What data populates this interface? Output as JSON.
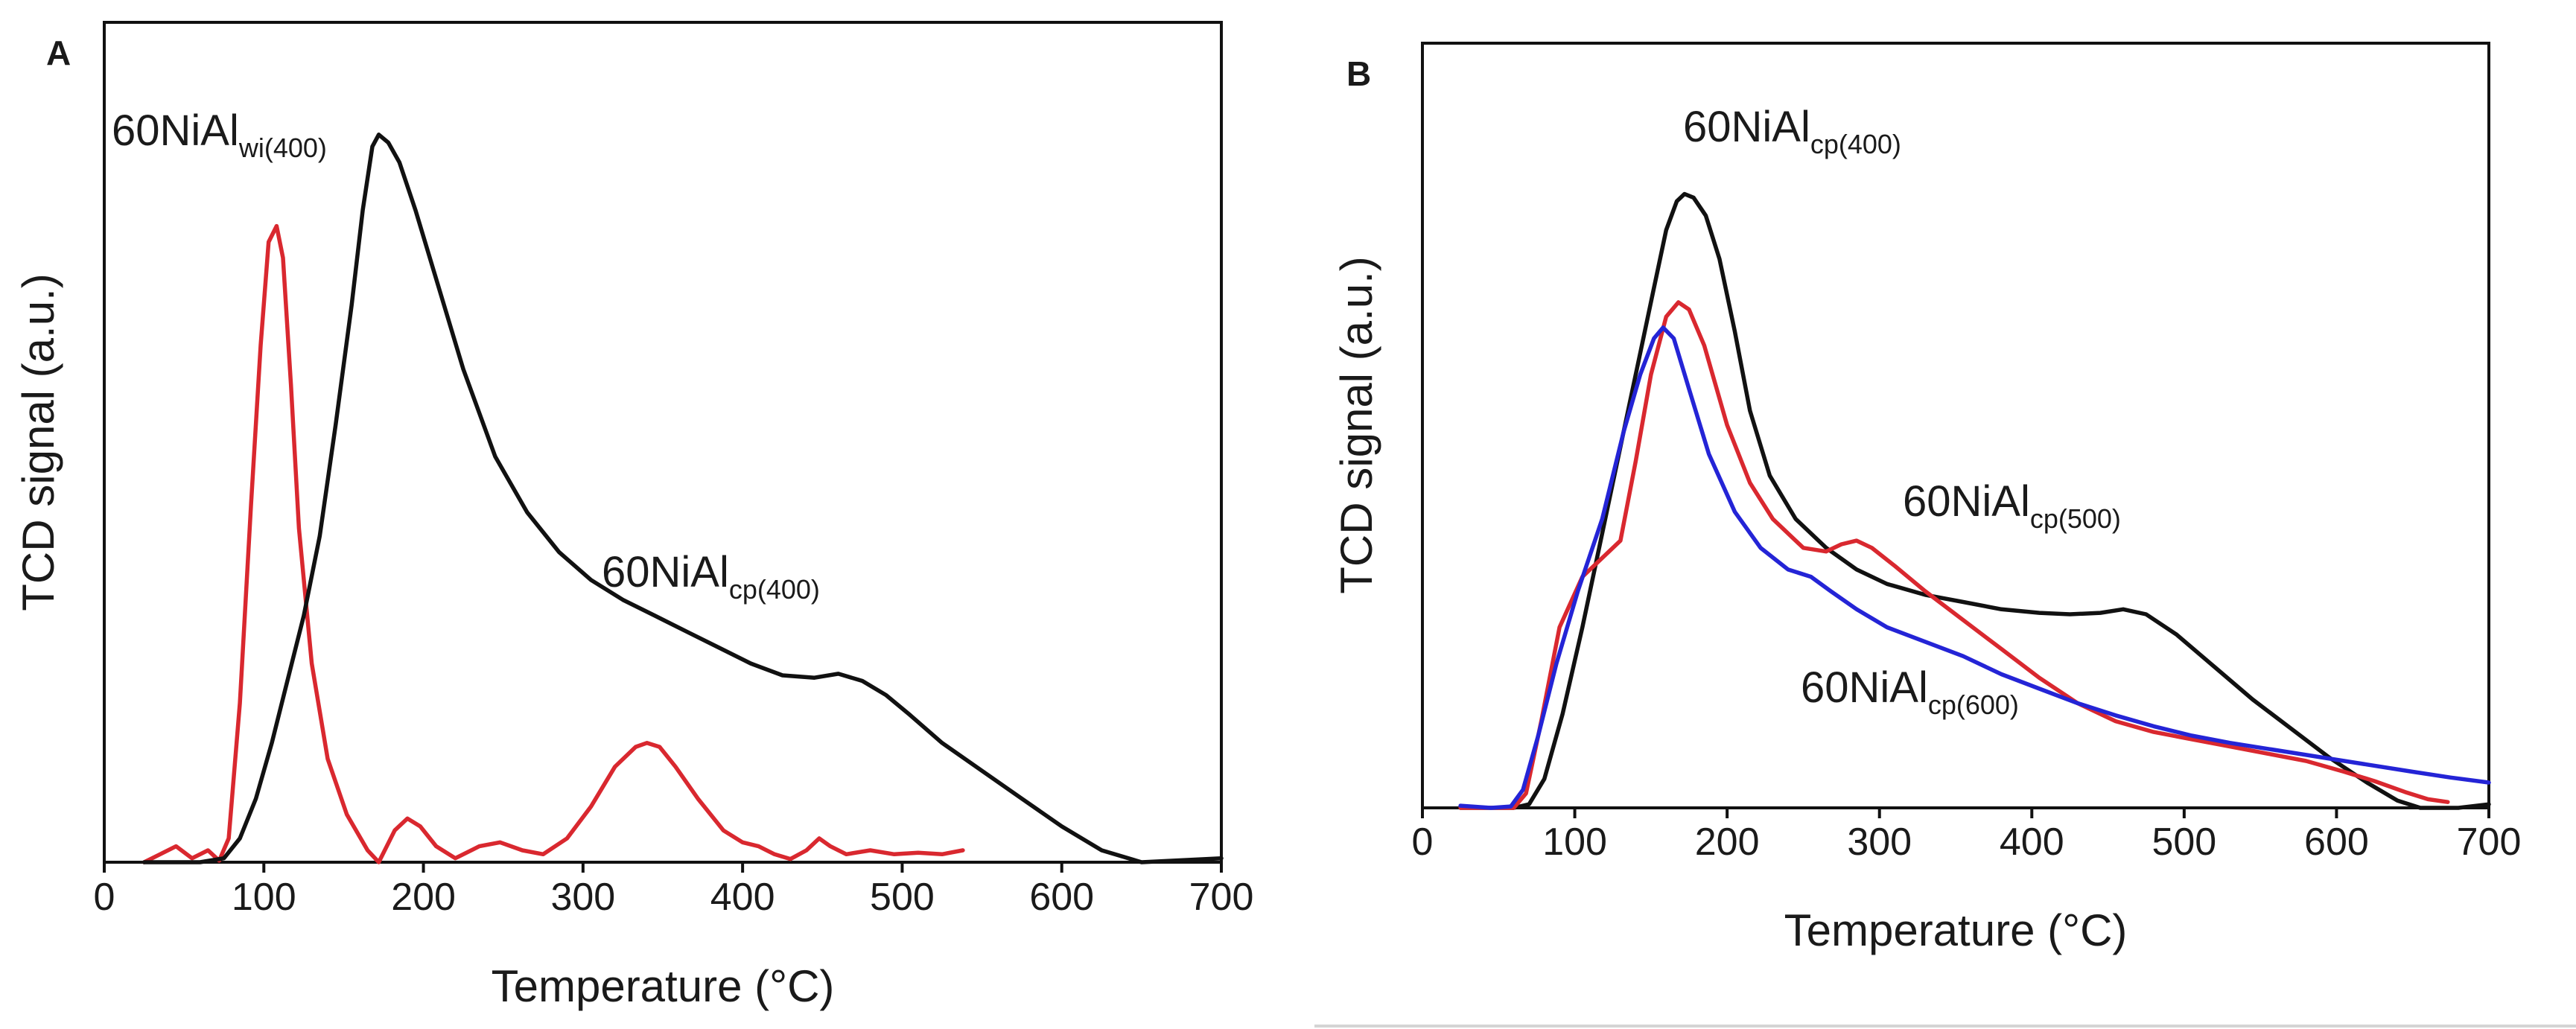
{
  "chart_data": [
    {
      "panel": "A",
      "type": "line",
      "title": "",
      "xlabel": "Temperature (°C)",
      "ylabel": "TCD signal (a.u.)",
      "xlim": [
        0,
        700
      ],
      "ylim": [
        0,
        1
      ],
      "xticks": [
        "0",
        "100",
        "200",
        "300",
        "400",
        "500",
        "600",
        "700"
      ],
      "grid": false,
      "series": [
        {
          "name": "60NiAlcp(400)",
          "label_main": "60NiAl",
          "label_sub": "cp(400)",
          "color": "#111111",
          "points": [
            [
              25,
              0.0
            ],
            [
              60,
              0.0
            ],
            [
              75,
              0.005
            ],
            [
              85,
              0.03
            ],
            [
              95,
              0.08
            ],
            [
              105,
              0.15
            ],
            [
              115,
              0.23
            ],
            [
              125,
              0.31
            ],
            [
              135,
              0.41
            ],
            [
              145,
              0.55
            ],
            [
              155,
              0.7
            ],
            [
              162,
              0.82
            ],
            [
              168,
              0.9
            ],
            [
              172,
              0.915
            ],
            [
              178,
              0.905
            ],
            [
              185,
              0.88
            ],
            [
              195,
              0.82
            ],
            [
              210,
              0.72
            ],
            [
              225,
              0.62
            ],
            [
              245,
              0.51
            ],
            [
              265,
              0.44
            ],
            [
              285,
              0.39
            ],
            [
              305,
              0.355
            ],
            [
              325,
              0.33
            ],
            [
              345,
              0.31
            ],
            [
              365,
              0.29
            ],
            [
              385,
              0.27
            ],
            [
              405,
              0.25
            ],
            [
              425,
              0.235
            ],
            [
              445,
              0.232
            ],
            [
              460,
              0.237
            ],
            [
              475,
              0.228
            ],
            [
              490,
              0.21
            ],
            [
              505,
              0.185
            ],
            [
              525,
              0.15
            ],
            [
              550,
              0.115
            ],
            [
              575,
              0.08
            ],
            [
              600,
              0.045
            ],
            [
              625,
              0.015
            ],
            [
              650,
              0.0
            ],
            [
              700,
              0.005
            ]
          ]
        },
        {
          "name": "60NiAlwi(400)",
          "label_main": "60NiAl",
          "label_sub": "wi(400)",
          "color": "#d9282f",
          "points": [
            [
              25,
              0.0
            ],
            [
              35,
              0.01
            ],
            [
              45,
              0.02
            ],
            [
              55,
              0.005
            ],
            [
              65,
              0.015
            ],
            [
              72,
              0.002
            ],
            [
              78,
              0.03
            ],
            [
              85,
              0.2
            ],
            [
              92,
              0.45
            ],
            [
              98,
              0.65
            ],
            [
              103,
              0.78
            ],
            [
              108,
              0.8
            ],
            [
              112,
              0.76
            ],
            [
              117,
              0.6
            ],
            [
              122,
              0.42
            ],
            [
              130,
              0.25
            ],
            [
              140,
              0.13
            ],
            [
              152,
              0.06
            ],
            [
              165,
              0.015
            ],
            [
              172,
              0.0
            ],
            [
              182,
              0.04
            ],
            [
              190,
              0.055
            ],
            [
              198,
              0.045
            ],
            [
              208,
              0.02
            ],
            [
              220,
              0.005
            ],
            [
              235,
              0.02
            ],
            [
              248,
              0.025
            ],
            [
              262,
              0.015
            ],
            [
              275,
              0.01
            ],
            [
              290,
              0.03
            ],
            [
              305,
              0.07
            ],
            [
              320,
              0.12
            ],
            [
              333,
              0.145
            ],
            [
              340,
              0.15
            ],
            [
              348,
              0.145
            ],
            [
              358,
              0.12
            ],
            [
              372,
              0.08
            ],
            [
              388,
              0.04
            ],
            [
              400,
              0.025
            ],
            [
              410,
              0.02
            ],
            [
              420,
              0.01
            ],
            [
              430,
              0.004
            ],
            [
              440,
              0.015
            ],
            [
              448,
              0.03
            ],
            [
              455,
              0.02
            ],
            [
              465,
              0.01
            ],
            [
              480,
              0.015
            ],
            [
              495,
              0.01
            ],
            [
              510,
              0.012
            ],
            [
              525,
              0.01
            ],
            [
              538,
              0.015
            ]
          ]
        }
      ]
    },
    {
      "panel": "B",
      "type": "line",
      "title": "",
      "xlabel": "Temperature (°C)",
      "ylabel": "TCD signal (a.u.)",
      "xlim": [
        0,
        700
      ],
      "ylim": [
        0,
        1
      ],
      "xticks": [
        "0",
        "100",
        "200",
        "300",
        "400",
        "500",
        "600",
        "700"
      ],
      "grid": false,
      "series": [
        {
          "name": "60NiAlcp(400)",
          "label_main": "60NiAl",
          "label_sub": "cp(400)",
          "color": "#111111",
          "points": [
            [
              25,
              0.0
            ],
            [
              60,
              0.0
            ],
            [
              70,
              0.005
            ],
            [
              80,
              0.04
            ],
            [
              92,
              0.13
            ],
            [
              105,
              0.25
            ],
            [
              118,
              0.38
            ],
            [
              130,
              0.5
            ],
            [
              142,
              0.62
            ],
            [
              152,
              0.72
            ],
            [
              160,
              0.8
            ],
            [
              167,
              0.84
            ],
            [
              172,
              0.85
            ],
            [
              178,
              0.845
            ],
            [
              186,
              0.82
            ],
            [
              195,
              0.76
            ],
            [
              205,
              0.66
            ],
            [
              215,
              0.55
            ],
            [
              228,
              0.46
            ],
            [
              245,
              0.4
            ],
            [
              265,
              0.36
            ],
            [
              285,
              0.33
            ],
            [
              305,
              0.31
            ],
            [
              330,
              0.295
            ],
            [
              355,
              0.285
            ],
            [
              380,
              0.275
            ],
            [
              405,
              0.27
            ],
            [
              425,
              0.268
            ],
            [
              445,
              0.27
            ],
            [
              460,
              0.275
            ],
            [
              475,
              0.268
            ],
            [
              495,
              0.24
            ],
            [
              520,
              0.195
            ],
            [
              545,
              0.15
            ],
            [
              570,
              0.11
            ],
            [
              595,
              0.07
            ],
            [
              620,
              0.035
            ],
            [
              640,
              0.01
            ],
            [
              655,
              0.0
            ],
            [
              680,
              0.0
            ],
            [
              700,
              0.005
            ]
          ]
        },
        {
          "name": "60NiAlcp(500)",
          "label_main": "60NiAl",
          "label_sub": "cp(500)",
          "color": "#d9282f",
          "points": [
            [
              25,
              0.0
            ],
            [
              60,
              0.0
            ],
            [
              68,
              0.02
            ],
            [
              78,
              0.12
            ],
            [
              90,
              0.25
            ],
            [
              105,
              0.32
            ],
            [
              120,
              0.35
            ],
            [
              130,
              0.37
            ],
            [
              140,
              0.48
            ],
            [
              150,
              0.6
            ],
            [
              160,
              0.68
            ],
            [
              168,
              0.7
            ],
            [
              175,
              0.69
            ],
            [
              185,
              0.64
            ],
            [
              200,
              0.53
            ],
            [
              215,
              0.45
            ],
            [
              230,
              0.4
            ],
            [
              250,
              0.36
            ],
            [
              265,
              0.355
            ],
            [
              275,
              0.365
            ],
            [
              285,
              0.37
            ],
            [
              295,
              0.36
            ],
            [
              310,
              0.335
            ],
            [
              330,
              0.3
            ],
            [
              355,
              0.26
            ],
            [
              380,
              0.22
            ],
            [
              405,
              0.18
            ],
            [
              430,
              0.145
            ],
            [
              455,
              0.12
            ],
            [
              480,
              0.105
            ],
            [
              505,
              0.095
            ],
            [
              530,
              0.085
            ],
            [
              555,
              0.075
            ],
            [
              580,
              0.065
            ],
            [
              605,
              0.05
            ],
            [
              625,
              0.037
            ],
            [
              645,
              0.022
            ],
            [
              660,
              0.012
            ],
            [
              673,
              0.008
            ]
          ]
        },
        {
          "name": "60NiAlcp(600)",
          "label_main": "60NiAl",
          "label_sub": "cp(600)",
          "color": "#2424d6",
          "points": [
            [
              25,
              0.003
            ],
            [
              45,
              0.0
            ],
            [
              58,
              0.002
            ],
            [
              66,
              0.025
            ],
            [
              76,
              0.1
            ],
            [
              88,
              0.2
            ],
            [
              102,
              0.3
            ],
            [
              118,
              0.4
            ],
            [
              132,
              0.52
            ],
            [
              143,
              0.6
            ],
            [
              152,
              0.65
            ],
            [
              158,
              0.665
            ],
            [
              165,
              0.65
            ],
            [
              175,
              0.58
            ],
            [
              188,
              0.49
            ],
            [
              205,
              0.41
            ],
            [
              222,
              0.36
            ],
            [
              240,
              0.33
            ],
            [
              255,
              0.32
            ],
            [
              268,
              0.3
            ],
            [
              285,
              0.275
            ],
            [
              305,
              0.25
            ],
            [
              330,
              0.23
            ],
            [
              355,
              0.21
            ],
            [
              380,
              0.185
            ],
            [
              405,
              0.165
            ],
            [
              430,
              0.145
            ],
            [
              455,
              0.128
            ],
            [
              480,
              0.113
            ],
            [
              505,
              0.1
            ],
            [
              530,
              0.09
            ],
            [
              560,
              0.08
            ],
            [
              590,
              0.07
            ],
            [
              620,
              0.06
            ],
            [
              650,
              0.05
            ],
            [
              675,
              0.042
            ],
            [
              700,
              0.035
            ]
          ]
        }
      ]
    }
  ]
}
